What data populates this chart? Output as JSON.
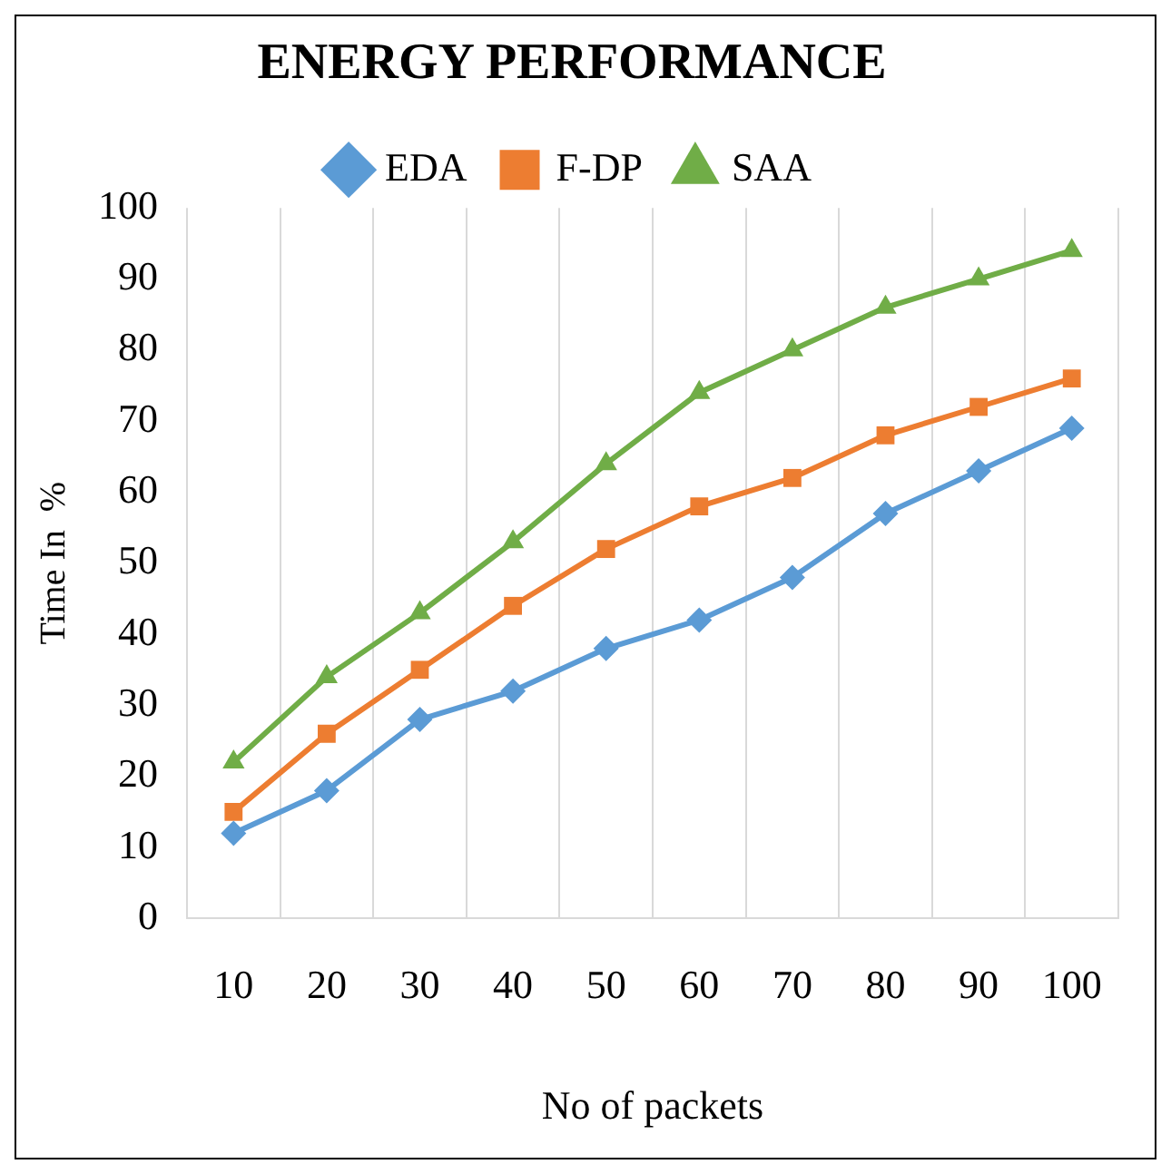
{
  "chart_data": {
    "type": "line",
    "title": "ENERGY PERFORMANCE",
    "xlabel": "No of packets",
    "ylabel": "Time In  %",
    "categories": [
      "10",
      "20",
      "30",
      "40",
      "50",
      "60",
      "70",
      "80",
      "90",
      "100"
    ],
    "series": [
      {
        "name": "EDA",
        "color": "#5b9bd5",
        "marker": "diamond",
        "values": [
          12,
          18,
          28,
          32,
          38,
          42,
          48,
          57,
          63,
          69
        ]
      },
      {
        "name": "F-DP",
        "color": "#ed7d31",
        "marker": "square",
        "values": [
          15,
          26,
          35,
          44,
          52,
          58,
          62,
          68,
          72,
          76
        ]
      },
      {
        "name": "SAA",
        "color": "#70ad47",
        "marker": "triangle",
        "values": [
          22,
          34,
          43,
          53,
          64,
          74,
          80,
          86,
          90,
          94
        ]
      }
    ],
    "ylim": [
      0,
      100
    ],
    "yticks": [
      0,
      10,
      20,
      30,
      40,
      50,
      60,
      70,
      80,
      90,
      100
    ],
    "grid": "x",
    "legend": "top",
    "line_style": "solid"
  }
}
